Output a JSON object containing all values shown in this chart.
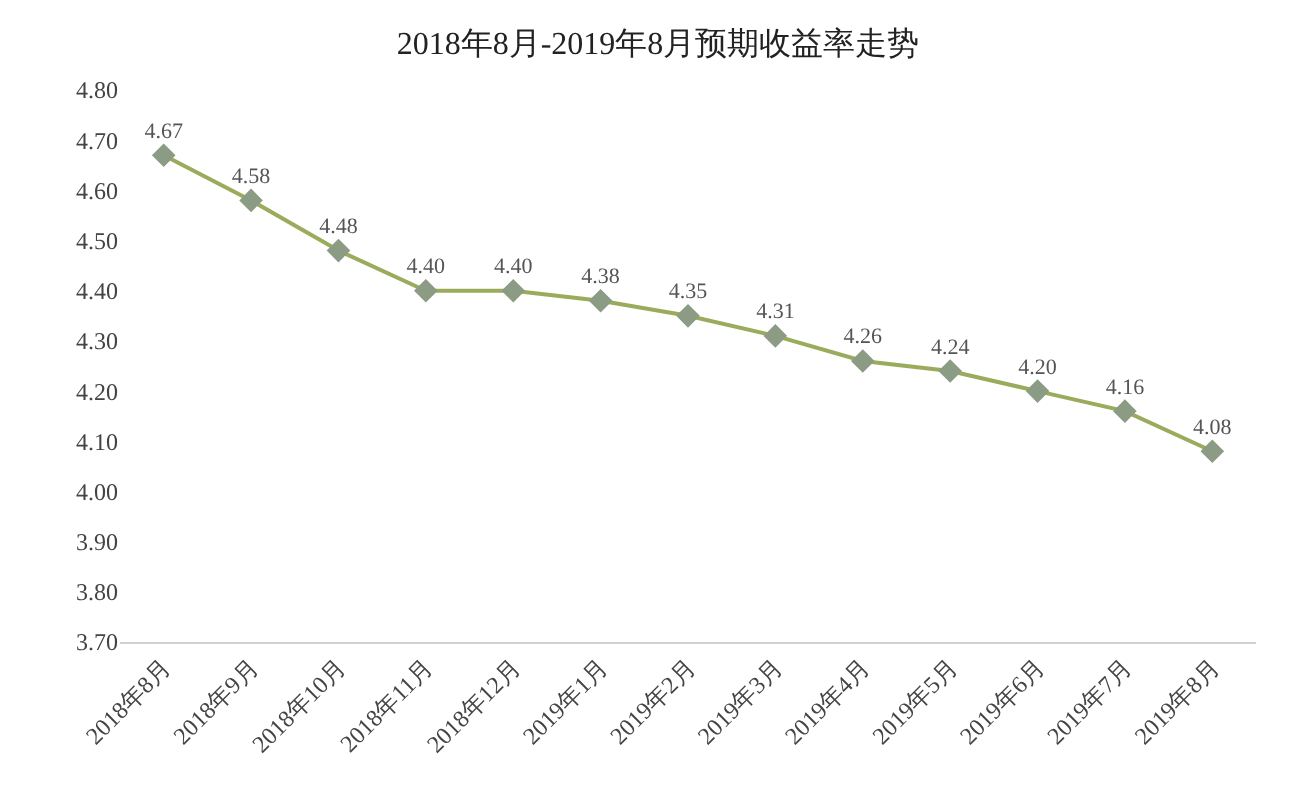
{
  "chart_data": {
    "type": "line",
    "title": "2018年8月-2019年8月预期收益率走势",
    "categories": [
      "2018年8月",
      "2018年9月",
      "2018年10月",
      "2018年11月",
      "2018年12月",
      "2019年1月",
      "2019年2月",
      "2019年3月",
      "2019年4月",
      "2019年5月",
      "2019年6月",
      "2019年7月",
      "2019年8月"
    ],
    "series": [
      {
        "color": "#9aab5c",
        "values": [
          4.67,
          4.58,
          4.48,
          4.4,
          4.4,
          4.38,
          4.35,
          4.31,
          4.26,
          4.24,
          4.2,
          4.16,
          4.08
        ],
        "value_labels": [
          "4.67",
          "4.58",
          "4.48",
          "4.40",
          "4.40",
          "4.38",
          "4.35",
          "4.31",
          "4.26",
          "4.24",
          "4.20",
          "4.16",
          "4.08"
        ]
      }
    ],
    "ylim": [
      3.7,
      4.8
    ],
    "yticks": [
      {
        "value": 3.7,
        "label": "3.70"
      },
      {
        "value": 3.8,
        "label": "3.80"
      },
      {
        "value": 3.9,
        "label": "3.90"
      },
      {
        "value": 4.0,
        "label": "4.00"
      },
      {
        "value": 4.1,
        "label": "4.10"
      },
      {
        "value": 4.2,
        "label": "4.20"
      },
      {
        "value": 4.3,
        "label": "4.30"
      },
      {
        "value": 4.4,
        "label": "4.40"
      },
      {
        "value": 4.5,
        "label": "4.50"
      },
      {
        "value": 4.6,
        "label": "4.60"
      },
      {
        "value": 4.7,
        "label": "4.70"
      },
      {
        "value": 4.8,
        "label": "4.80"
      }
    ],
    "marker": "diamond"
  }
}
